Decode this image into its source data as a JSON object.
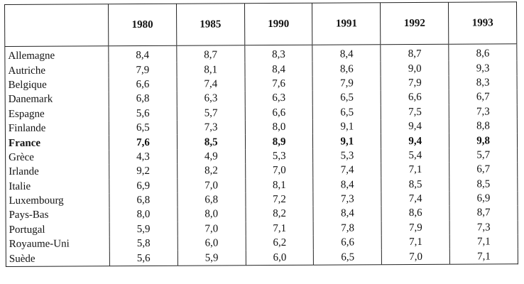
{
  "table": {
    "headers": [
      "1980",
      "1985",
      "1990",
      "1991",
      "1992",
      "1993"
    ],
    "rows": [
      [
        "Allemagne",
        "8,4",
        "8,7",
        "8,3",
        "8,4",
        "8,7",
        "8,6"
      ],
      [
        "Autriche",
        "7,9",
        "8,1",
        "8,4",
        "8,6",
        "9,0",
        "9,3"
      ],
      [
        "Belgique",
        "6,6",
        "7,4",
        "7,6",
        "7,9",
        "7,9",
        "8,3"
      ],
      [
        "Danemark",
        "6,8",
        "6,3",
        "6,3",
        "6,5",
        "6,6",
        "6,7"
      ],
      [
        "Espagne",
        "5,6",
        "5,7",
        "6,6",
        "6,5",
        "7,5",
        "7,3"
      ],
      [
        "Finlande",
        "6,5",
        "7,3",
        "8,0",
        "9,1",
        "9,4",
        "8,8"
      ],
      [
        "France",
        "7,6",
        "8,5",
        "8,9",
        "9,1",
        "9,4",
        "9,8"
      ],
      [
        "Grèce",
        "4,3",
        "4,9",
        "5,3",
        "5,3",
        "5,4",
        "5,7"
      ],
      [
        "Irlande",
        "9,2",
        "8,2",
        "7,0",
        "7,4",
        "7,1",
        "6,7"
      ],
      [
        "Italie",
        "6,9",
        "7,0",
        "8,1",
        "8,4",
        "8,5",
        "8,5"
      ],
      [
        "Luxembourg",
        "6,8",
        "6,8",
        "7,2",
        "7,3",
        "7,4",
        "6,9"
      ],
      [
        "Pays-Bas",
        "8,0",
        "8,0",
        "8,2",
        "8,4",
        "8,6",
        "8,7"
      ],
      [
        "Portugal",
        "5,9",
        "7,0",
        "7,1",
        "7,8",
        "7,9",
        "7,3"
      ],
      [
        "Royaume-Uni",
        "5,8",
        "6,0",
        "6,2",
        "6,6",
        "7,1",
        "7,1"
      ],
      [
        "Suède",
        "5,6",
        "5,9",
        "6,0",
        "6,5",
        "7,0",
        "7,1"
      ]
    ]
  }
}
